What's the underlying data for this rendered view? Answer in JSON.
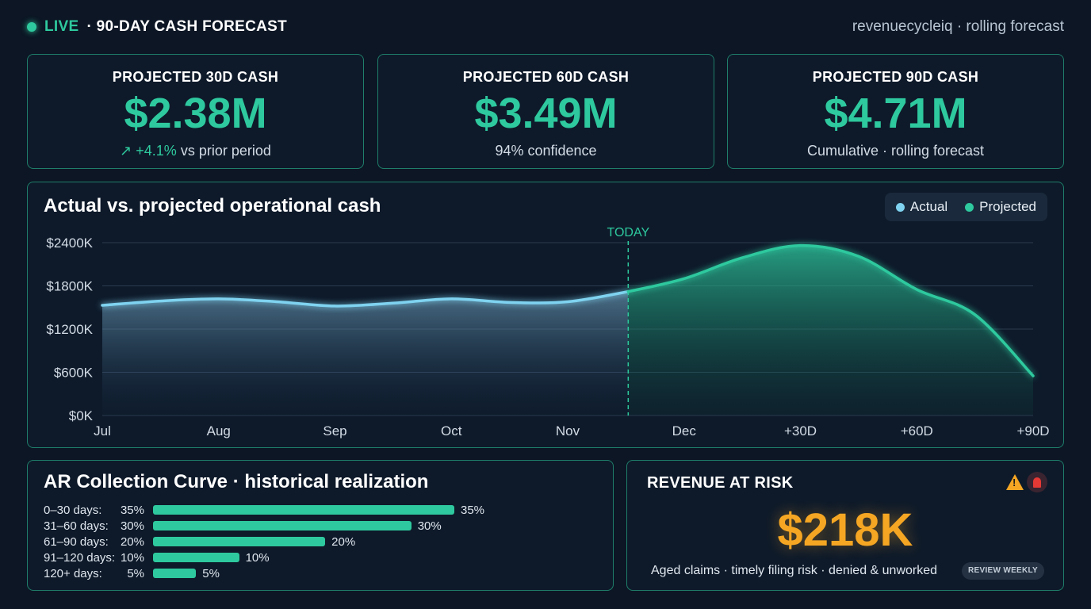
{
  "header": {
    "live_label": "LIVE",
    "title": "· 90-DAY CASH FORECAST",
    "subtitle": "revenuecycleiq · rolling forecast"
  },
  "kpis": [
    {
      "label": "PROJECTED 30D CASH",
      "value": "$2.38M",
      "delta": "+4.1%",
      "delta_icon": "arrow-up-right-icon",
      "sub": "vs prior period"
    },
    {
      "label": "PROJECTED 60D CASH",
      "value": "$3.49M",
      "sub": "94% confidence"
    },
    {
      "label": "PROJECTED 90D CASH",
      "value": "$4.71M",
      "sub": "Cumulative · rolling forecast"
    }
  ],
  "chart_data": {
    "type": "area",
    "title": "Actual vs. projected operational cash",
    "x_labels": [
      "Jul",
      "Aug",
      "Sep",
      "Oct",
      "Nov",
      "Dec",
      "+30D",
      "+60D",
      "+90D"
    ],
    "y_ticks": [
      "$0K",
      "$600K",
      "$1200K",
      "$1800K",
      "$2400K"
    ],
    "ylim": [
      0,
      2400
    ],
    "today_label": "TODAY",
    "today_x": 4.52,
    "legend_placement": "top-right",
    "grid": true,
    "series": [
      {
        "name": "Actual",
        "color": "#7fd3f0",
        "points": [
          [
            0,
            1530
          ],
          [
            0.5,
            1590
          ],
          [
            1,
            1620
          ],
          [
            1.5,
            1580
          ],
          [
            2,
            1520
          ],
          [
            2.5,
            1560
          ],
          [
            3,
            1620
          ],
          [
            3.5,
            1570
          ],
          [
            4,
            1580
          ],
          [
            4.52,
            1720
          ]
        ]
      },
      {
        "name": "Projected",
        "color": "#2ec99e",
        "points": [
          [
            4.52,
            1720
          ],
          [
            5,
            1900
          ],
          [
            5.5,
            2190
          ],
          [
            6,
            2360
          ],
          [
            6.5,
            2210
          ],
          [
            7,
            1750
          ],
          [
            7.5,
            1400
          ],
          [
            8,
            550
          ]
        ]
      }
    ]
  },
  "ar_curve": {
    "title": "AR Collection Curve · historical realization",
    "rows": [
      {
        "label": "0–30 days:",
        "pct": "35%",
        "value": 35
      },
      {
        "label": "31–60 days:",
        "pct": "30%",
        "value": 30
      },
      {
        "label": "61–90 days:",
        "pct": "20%",
        "value": 20
      },
      {
        "label": "91–120 days:",
        "pct": "10%",
        "value": 10
      },
      {
        "label": "120+ days:",
        "pct": "5%",
        "value": 5
      }
    ]
  },
  "risk": {
    "title": "REVENUE AT RISK",
    "value": "$218K",
    "sub": "Aged claims · timely filing risk · denied & unworked",
    "badge": "REVIEW WEEKLY",
    "icons": [
      "warning-icon",
      "siren-icon"
    ],
    "color": "#f5a623"
  }
}
